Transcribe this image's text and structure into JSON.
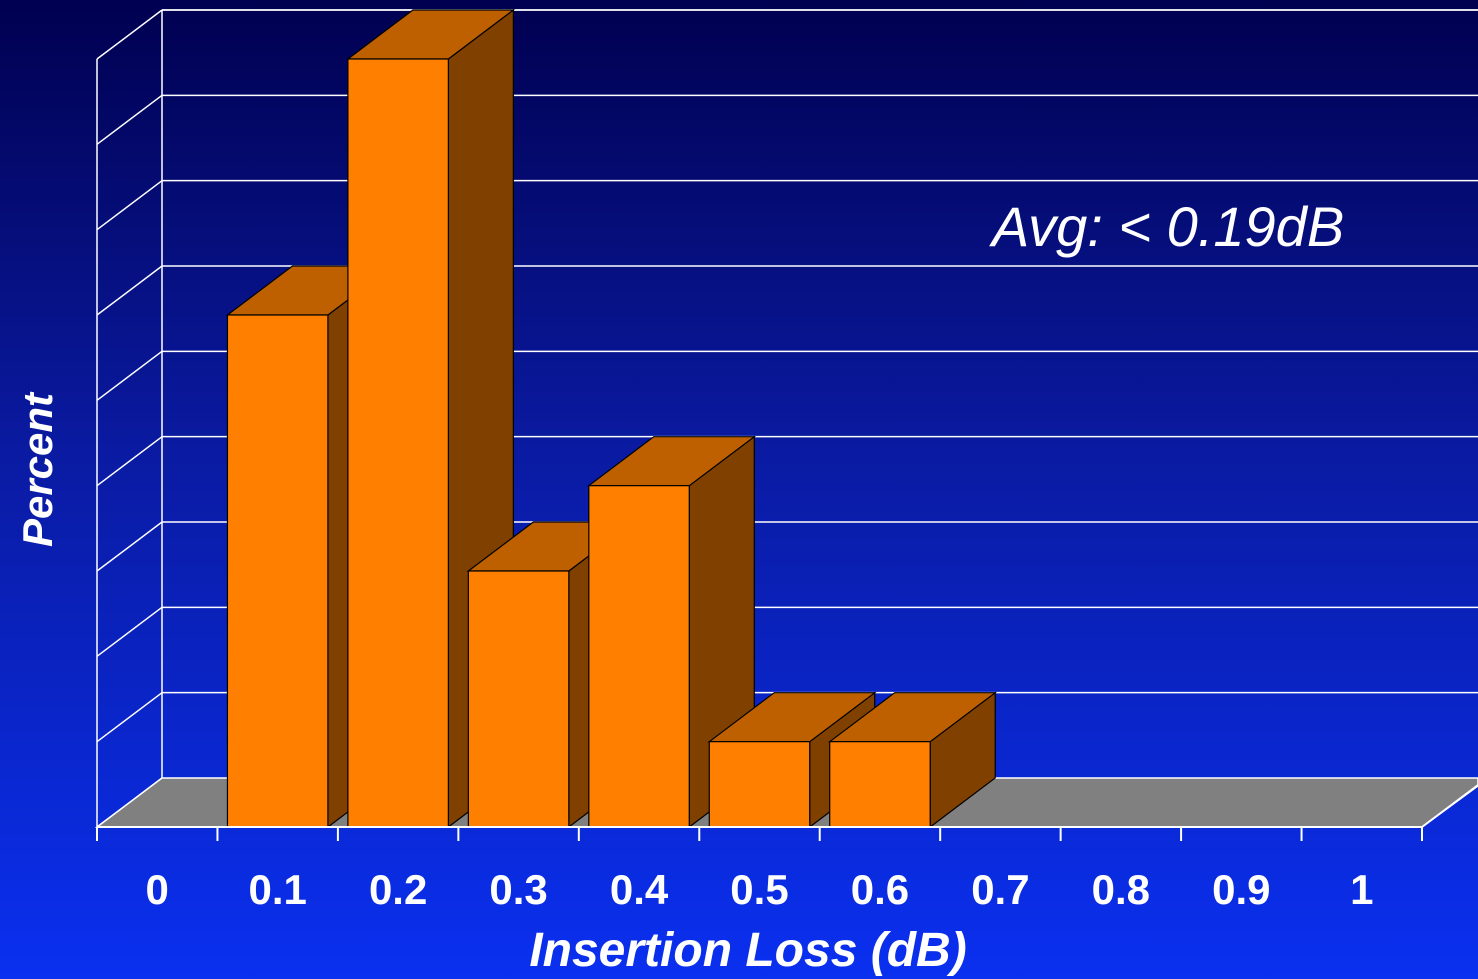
{
  "chart_data": {
    "type": "bar",
    "categories": [
      "0",
      "0.1",
      "0.2",
      "0.3",
      "0.4",
      "0.5",
      "0.6",
      "0.7",
      "0.8",
      "0.9",
      "1"
    ],
    "values": [
      0,
      30,
      45,
      15,
      20,
      5,
      5,
      0,
      0,
      0,
      0
    ],
    "xlabel": "Insertion Loss (dB)",
    "ylabel": "Percent",
    "ylim": [
      0,
      45
    ],
    "grid": true,
    "three_d": true,
    "annotation": "Avg: < 0.19dB"
  },
  "colors": {
    "bar_front": "#ff8000",
    "bar_top": "#bf6000",
    "bar_side": "#804000",
    "floor": "#808080",
    "gridline": "#ffffff"
  }
}
